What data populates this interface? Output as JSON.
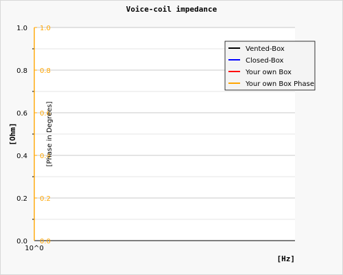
{
  "chart_data": {
    "type": "line",
    "title": "Voice-coil impedance",
    "xlabel": "[Hz]",
    "ylabel": "[Ohm]",
    "y2label": "[Phase in Degrees]",
    "x_scale": "log",
    "x_tick_labels": [
      "10^0"
    ],
    "ylim": [
      0,
      1
    ],
    "y_ticks": [
      "0.0",
      "0.2",
      "0.4",
      "0.6",
      "0.8",
      "1.0"
    ],
    "y2lim": [
      0,
      1
    ],
    "y2_ticks": [
      "0.0",
      "0.2",
      "0.4",
      "0.6",
      "0.8",
      "1.0"
    ],
    "grid": true,
    "legend_position": "top-right",
    "series": [
      {
        "name": "Vented-Box",
        "color": "#000000",
        "values": []
      },
      {
        "name": "Closed-Box",
        "color": "#0000ff",
        "values": []
      },
      {
        "name": "Your own Box",
        "color": "#ff0000",
        "values": []
      },
      {
        "name": "Your own Box Phase",
        "color": "#ffa500",
        "values": []
      }
    ],
    "colors": {
      "frame_background": "#f8f8f8",
      "plot_background": "#ffffff",
      "grid": "#c8c8c8",
      "secondary_axis": "#ffa500"
    }
  }
}
